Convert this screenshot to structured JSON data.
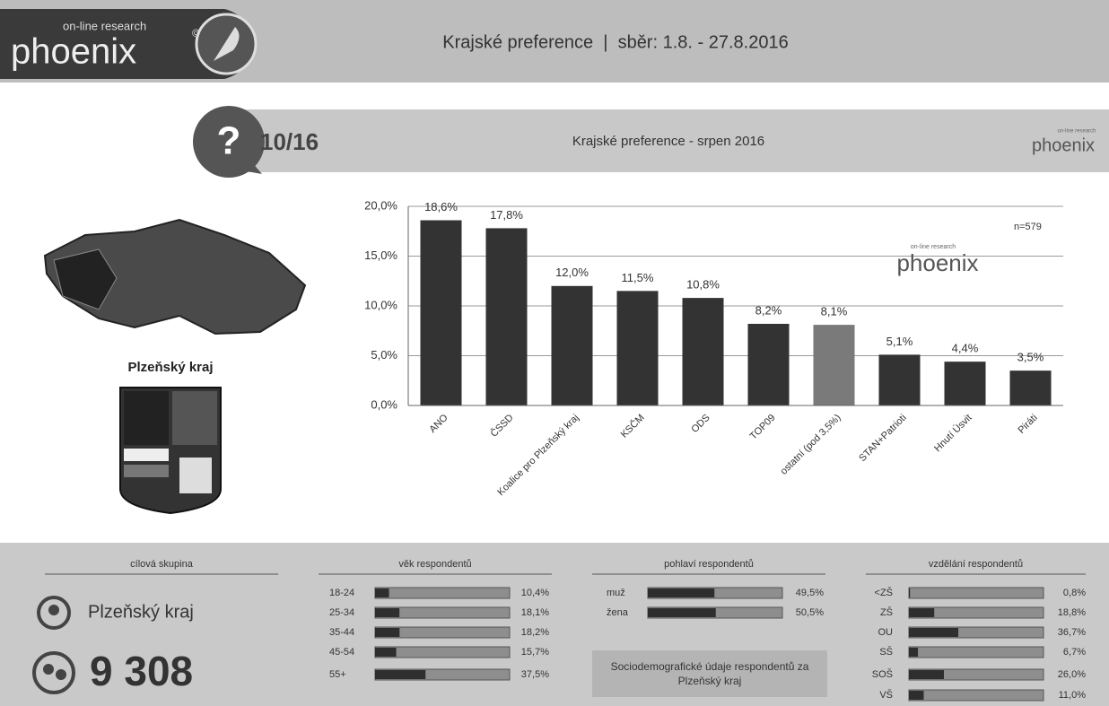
{
  "header": {
    "logo_small": "on-line research",
    "logo": "phoenix",
    "logo_mark": "©",
    "title": "Krajské preference  |  sběr: 1.8. - 27.8.2016"
  },
  "question": {
    "number": "10/16",
    "title": "Krajské preference - srpen 2016",
    "logo_small": "on-line research",
    "logo": "phoenix"
  },
  "region": {
    "name": "Plzeňský kraj"
  },
  "chart_data": {
    "type": "bar",
    "categories": [
      "ANO",
      "ČSSD",
      "Koalice pro Plzeňský kraj",
      "KSČM",
      "ODS",
      "TOP09",
      "ostatní (pod 3,5%)",
      "STAN+Patrioti",
      "Hnutí Úsvit",
      "Piráti"
    ],
    "values": [
      18.6,
      17.8,
      12.0,
      11.5,
      10.8,
      8.2,
      8.1,
      5.1,
      4.4,
      3.5
    ],
    "value_labels": [
      "18,6%",
      "17,8%",
      "12,0%",
      "11,5%",
      "10,8%",
      "8,2%",
      "8,1%",
      "5,1%",
      "4,4%",
      "3,5%"
    ],
    "colors": [
      "#333333",
      "#333333",
      "#333333",
      "#333333",
      "#333333",
      "#333333",
      "#7a7a7a",
      "#333333",
      "#333333",
      "#333333"
    ],
    "ylim": [
      0,
      20
    ],
    "yticks": [
      {
        "value": 0,
        "label": "0,0%"
      },
      {
        "value": 5,
        "label": "5,0%"
      },
      {
        "value": 10,
        "label": "10,0%"
      },
      {
        "value": 15,
        "label": "15,0%"
      },
      {
        "value": 20,
        "label": "20,0%"
      }
    ],
    "grid": true,
    "annotation": "n=579",
    "watermark_small": "on-line research",
    "watermark": "phoenix"
  },
  "panels": {
    "target": {
      "heading": "cílová skupina",
      "location": "Plzeňský kraj",
      "count": "9 308"
    },
    "age": {
      "heading": "věk respondentů",
      "xlim": [
        0,
        100
      ],
      "rows": [
        {
          "label": "18-24",
          "value": 10.4,
          "value_label": "10,4%"
        },
        {
          "label": "25-34",
          "value": 18.1,
          "value_label": "18,1%"
        },
        {
          "label": "35-44",
          "value": 18.2,
          "value_label": "18,2%"
        },
        {
          "label": "45-54",
          "value": 15.7,
          "value_label": "15,7%"
        },
        {
          "label": "55+",
          "value": 37.5,
          "value_label": "37,5%"
        }
      ]
    },
    "gender": {
      "heading": "pohlaví respondentů",
      "xlim": [
        0,
        100
      ],
      "rows": [
        {
          "label": "muž",
          "value": 49.5,
          "value_label": "49,5%"
        },
        {
          "label": "žena",
          "value": 50.5,
          "value_label": "50,5%"
        }
      ],
      "note": "Sociodemografické údaje respondentů za Plzeňský kraj"
    },
    "education": {
      "heading": "vzdělání respondentů",
      "xlim": [
        0,
        100
      ],
      "rows": [
        {
          "label": "<ZŠ",
          "value": 0.8,
          "value_label": "0,8%"
        },
        {
          "label": "ZŠ",
          "value": 18.8,
          "value_label": "18,8%"
        },
        {
          "label": "OU",
          "value": 36.7,
          "value_label": "36,7%"
        },
        {
          "label": "SŠ",
          "value": 6.7,
          "value_label": "6,7%"
        },
        {
          "label": "SOŠ",
          "value": 26.0,
          "value_label": "26,0%"
        },
        {
          "label": "VŠ",
          "value": 11.0,
          "value_label": "11,0%"
        }
      ]
    }
  }
}
